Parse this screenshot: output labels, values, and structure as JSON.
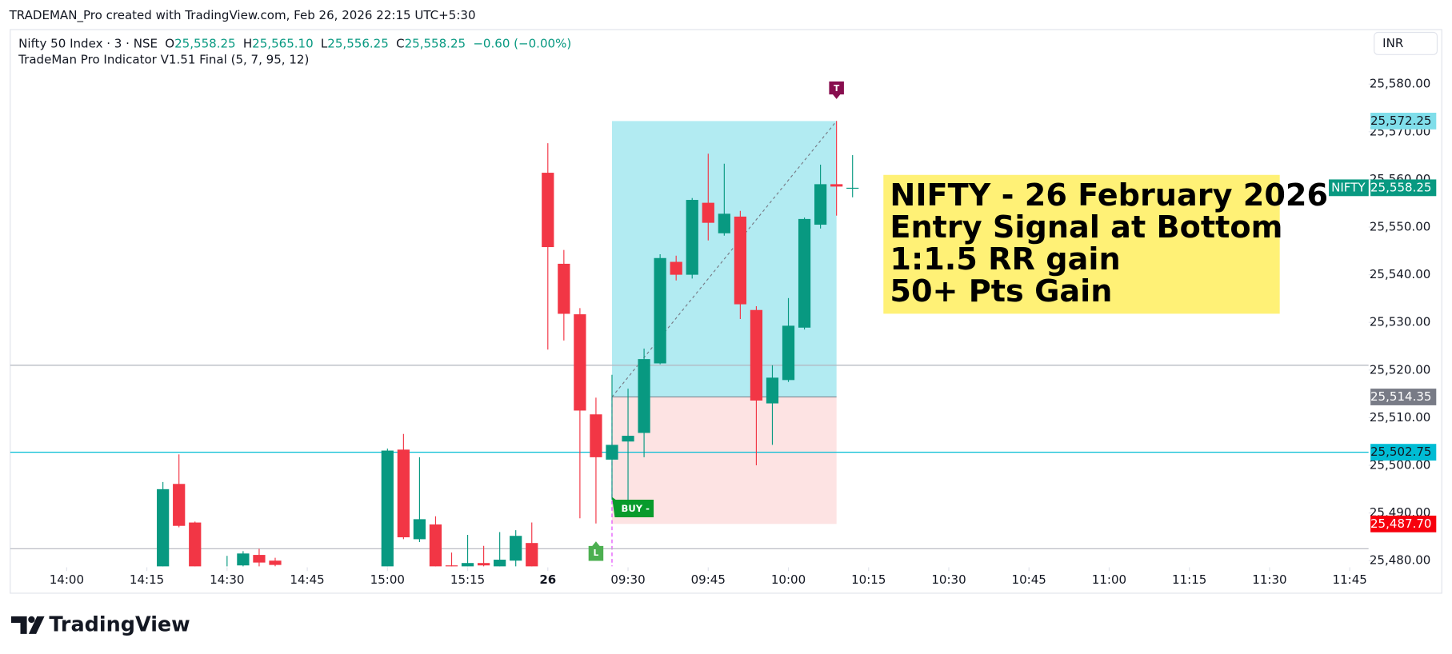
{
  "header": {
    "credit": "TRADEMAN_Pro created with TradingView.com, Feb 26, 2026 22:15 UTC+5:30",
    "symbol": "Nifty 50 Index · 3 · NSE",
    "ohlc": [
      {
        "key": "O",
        "value": "25,558.25"
      },
      {
        "key": "H",
        "value": "25,565.10"
      },
      {
        "key": "L",
        "value": "25,556.25"
      },
      {
        "key": "C",
        "value": "25,558.25"
      }
    ],
    "change": "−0.60 (−0.00%)",
    "indicator": "TradeMan Pro Indicator V1.51 Final (5, 7, 95, 12)",
    "currency": "INR"
  },
  "footer": {
    "brand": "TradingView"
  },
  "annotation": {
    "lines": [
      "NIFTY - 26 February 2026",
      "Entry Signal at Bottom",
      "1:1.5 RR gain",
      "50+ Pts Gain"
    ]
  },
  "chart_data": {
    "type": "candlestick",
    "x": [
      "14:18",
      "14:21",
      "14:24",
      "14:30",
      "14:33",
      "14:36",
      "14:39",
      "15:00",
      "15:03",
      "15:06",
      "15:09",
      "15:12",
      "15:15",
      "15:18",
      "15:21",
      "15:24",
      "15:27",
      "09:15",
      "09:18",
      "09:21",
      "09:24",
      "09:27",
      "09:30",
      "09:33",
      "09:36",
      "09:39",
      "09:42",
      "09:45",
      "09:48",
      "09:51",
      "09:54",
      "09:57",
      "10:00",
      "10:03",
      "10:06",
      "10:09",
      "10:12"
    ],
    "open": [
      25476,
      25496.1,
      25488,
      25477,
      25479,
      25481.2,
      25480,
      25476,
      25503.3,
      25484.5,
      25487.6,
      25479,
      25478,
      25479.5,
      25478.5,
      25480,
      25483.7,
      25561.4,
      25542.3,
      25531.7,
      25510.7,
      25501.2,
      25505,
      25506.8,
      25521.4,
      25542.7,
      25540,
      25555.1,
      25548.7,
      25552.2,
      25532.6,
      25513,
      25517.9,
      25528.9,
      25550.5,
      25559,
      25558.25
    ],
    "high": [
      25496.5,
      25502.3,
      25488.2,
      25481,
      25482,
      25482.5,
      25480.6,
      25503.5,
      25506.6,
      25501.7,
      25489.3,
      25481.7,
      25485.4,
      25483.1,
      25486,
      25486.4,
      25488,
      25567.6,
      25545.2,
      25533,
      25514.2,
      25519,
      25516.1,
      25524.5,
      25544.3,
      25544,
      25556.1,
      25565.4,
      25563.3,
      25553.4,
      25533.4,
      25521,
      25535.1,
      25552,
      25563.1,
      25572.25,
      25565.1
    ],
    "low": [
      25474,
      25487,
      25474,
      25476,
      25478.5,
      25478,
      25478.8,
      25474,
      25484.5,
      25483.9,
      25475,
      25476,
      25476,
      25477,
      25477,
      25478,
      25476,
      25524.3,
      25526.2,
      25488.9,
      25487.8,
      25492.8,
      25491.8,
      25501.7,
      25521.2,
      25538.8,
      25539.2,
      25547.2,
      25548.2,
      25530.7,
      25500,
      25504.3,
      25517.5,
      25528.5,
      25549.7,
      25552.4,
      25556.25
    ],
    "close": [
      25495,
      25487.3,
      25477,
      25478.5,
      25481.5,
      25479.6,
      25479.1,
      25503.1,
      25484.9,
      25488.7,
      25477,
      25478,
      25479.5,
      25479,
      25480.2,
      25485.2,
      25478,
      25545.8,
      25531.8,
      25511.5,
      25501.7,
      25504.3,
      25506.2,
      25522.3,
      25543.5,
      25540,
      25555.7,
      25550.9,
      25552.8,
      25533.8,
      25513.6,
      25518.4,
      25529.3,
      25551.7,
      25559,
      25558.5,
      25558.25
    ],
    "up_color": "#089981",
    "down_color": "#f23645",
    "ylim": [
      25478.8,
      25582.7
    ],
    "yticks": [
      {
        "value": 25480,
        "label": "25,480.00"
      },
      {
        "value": 25490,
        "label": "25,490.00"
      },
      {
        "value": 25500,
        "label": "25,500.00"
      },
      {
        "value": 25510,
        "label": "25,510.00"
      },
      {
        "value": 25520,
        "label": "25,520.00"
      },
      {
        "value": 25530,
        "label": "25,530.00"
      },
      {
        "value": 25540,
        "label": "25,540.00"
      },
      {
        "value": 25550,
        "label": "25,550.00"
      },
      {
        "value": 25560,
        "label": "25,560.00"
      },
      {
        "value": 25570,
        "label": "25,570.00"
      },
      {
        "value": 25580,
        "label": "25,580.00"
      }
    ],
    "xticks": [
      "14:00",
      "14:15",
      "14:30",
      "14:45",
      "15:00",
      "15:15",
      {
        "value": "09:15",
        "label": "26"
      },
      "09:30",
      "09:45",
      "10:00",
      "10:15",
      "10:30",
      "10:45",
      "11:00",
      "11:15",
      "11:30",
      "11:45"
    ],
    "last_price": {
      "tag": "NIFTY",
      "label": "25,558.25",
      "color": "#089981"
    },
    "hlines": [
      {
        "value": 25521,
        "color": "#b2b5be"
      },
      {
        "value": 25482.5,
        "color": "#b2b5be"
      },
      {
        "value": 25502.75,
        "label": "25,502.75",
        "color": "#00bcd4"
      }
    ],
    "position": {
      "start": "09:27",
      "end": "10:09",
      "target": {
        "value": 25572.25,
        "label": "25,572.25",
        "color": "#80deea"
      },
      "entry": {
        "value": 25514.35,
        "label": "25,514.35",
        "color": "#787b86"
      },
      "stop": {
        "value": 25487.7,
        "label": "25,487.70",
        "color": "#f7000d"
      }
    },
    "markers": [
      {
        "x": "10:09",
        "text": "T",
        "color": "#880e4f"
      },
      {
        "x": "09:24",
        "text": "L",
        "color": "#4caf50"
      },
      {
        "x": "09:27",
        "text": "BUY -",
        "color": "#089b2c"
      }
    ]
  }
}
